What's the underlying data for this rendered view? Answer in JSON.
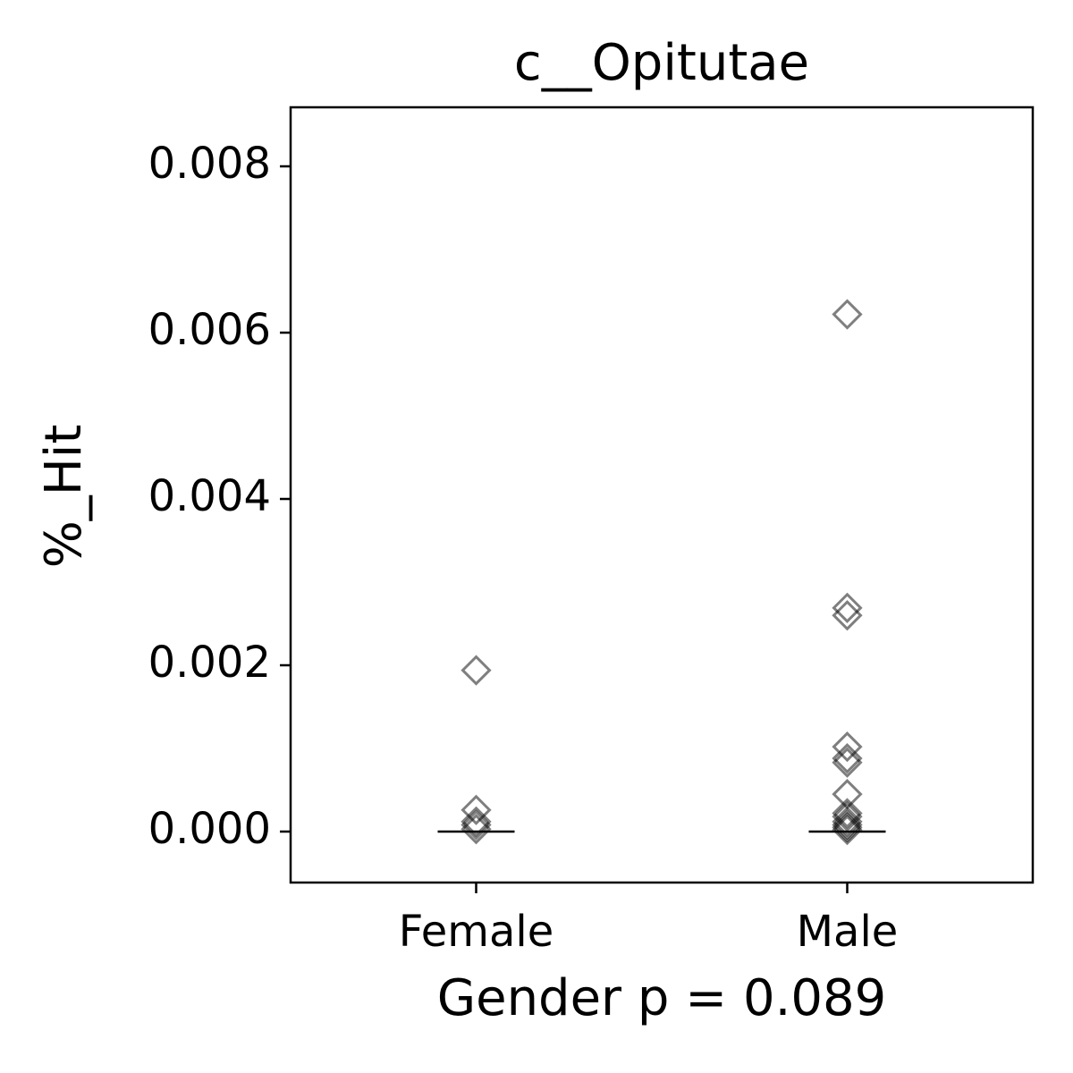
{
  "chart_data": {
    "type": "strip",
    "title": "c__Opitutae",
    "x_label": "Gender p = 0.089",
    "y_label": "%_Hit",
    "categories": [
      "Female",
      "Male"
    ],
    "points": [
      [
        0.00194,
        0.00026,
        0.00012,
        8e-05,
        3e-05
      ],
      [
        0.00622,
        0.00269,
        0.0026,
        0.00102,
        0.00088,
        0.00083,
        0.00045,
        0.00022,
        0.00018,
        0.00012,
        8e-05,
        5e-05,
        2e-05
      ]
    ],
    "medians": [
      0,
      0
    ],
    "color": "#000000",
    "ylim": [
      -0.000613,
      0.00871
    ],
    "yticks": [
      {
        "value": 0,
        "label": "0.000"
      },
      0.002,
      0.004,
      0.006,
      0.008
    ]
  }
}
